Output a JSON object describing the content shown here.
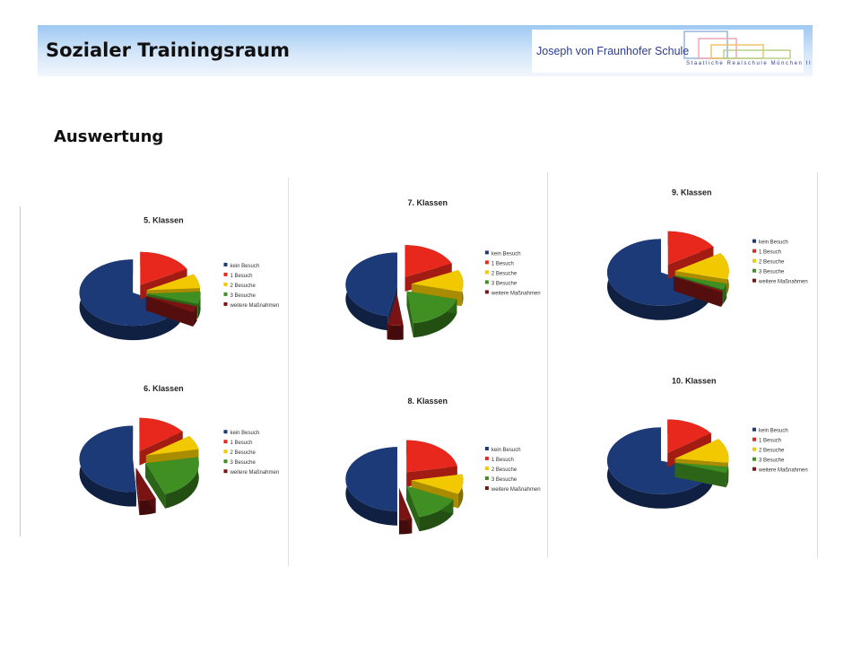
{
  "header": {
    "title": "Sozialer Trainingsraum",
    "logo_name": "Joseph von Fraunhofer Schule",
    "logo_subtitle": "Staatliche Realschule München II"
  },
  "subtitle": "Auswertung",
  "colors": {
    "kein_besuch": "#1c3a78",
    "1_besuch": "#e8281c",
    "2_besuche": "#f2c800",
    "3_besuche": "#3f8f22",
    "weitere": "#7a1414"
  },
  "chart_data": [
    {
      "type": "pie",
      "title": "5. Klassen",
      "labels": [
        "kein Besuch",
        "1 Besuch",
        "2 Besuche",
        "3 Besuche",
        "weitere Maßnahmen"
      ],
      "values": [
        67,
        17,
        7,
        6,
        3
      ]
    },
    {
      "type": "pie",
      "title": "6. Klassen",
      "labels": [
        "kein Besuch",
        "1 Besuch",
        "2 Besuche",
        "3 Besuche",
        "weitere Maßnahmen"
      ],
      "values": [
        51,
        15,
        7,
        22,
        5
      ]
    },
    {
      "type": "pie",
      "title": "7. Klassen",
      "labels": [
        "kein Besuch",
        "1 Besuch",
        "2 Besuche",
        "3 Besuche",
        "weitere Maßnahmen"
      ],
      "values": [
        47,
        18,
        11,
        19,
        5
      ]
    },
    {
      "type": "pie",
      "title": "8. Klassen",
      "labels": [
        "kein Besuch",
        "1 Besuch",
        "2 Besuche",
        "3 Besuche",
        "weitere Maßnahmen"
      ],
      "values": [
        50,
        22,
        10,
        14,
        4
      ]
    },
    {
      "type": "pie",
      "title": "9. Klassen",
      "labels": [
        "kein Besuch",
        "1 Besuch",
        "2 Besuche",
        "3 Besuche",
        "weitere Maßnahmen"
      ],
      "values": [
        67,
        16,
        13,
        3,
        1
      ]
    },
    {
      "type": "pie",
      "title": "10. Klassen",
      "labels": [
        "kein Besuch",
        "1 Besuch",
        "2 Besuche",
        "3 Besuche",
        "weitere Maßnahmen"
      ],
      "values": [
        70,
        15,
        12,
        3,
        0
      ]
    }
  ]
}
